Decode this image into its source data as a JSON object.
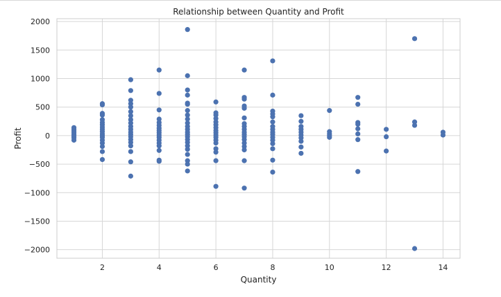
{
  "chart_data": {
    "type": "scatter",
    "title": "Relationship between Quantity and Profit",
    "xlabel": "Quantity",
    "ylabel": "Profit",
    "xlim": [
      0.4,
      14.6
    ],
    "ylim": [
      -2150,
      2050
    ],
    "xticks": [
      2,
      4,
      6,
      8,
      10,
      12,
      14
    ],
    "yticks": [
      -2000,
      -1500,
      -1000,
      -500,
      0,
      500,
      1000,
      1500,
      2000
    ],
    "xtick_labels": [
      "2",
      "4",
      "6",
      "8",
      "10",
      "12",
      "14"
    ],
    "ytick_labels": [
      "−2000",
      "−1500",
      "−1000",
      "−500",
      "0",
      "500",
      "1000",
      "1500",
      "2000"
    ],
    "grid": true,
    "marker_color": "#4c72b0",
    "points": [
      {
        "x": 1,
        "y": 140
      },
      {
        "x": 1,
        "y": 110
      },
      {
        "x": 1,
        "y": 80
      },
      {
        "x": 1,
        "y": 50
      },
      {
        "x": 1,
        "y": 20
      },
      {
        "x": 1,
        "y": -10
      },
      {
        "x": 1,
        "y": -40
      },
      {
        "x": 1,
        "y": -80
      },
      {
        "x": 2,
        "y": 560
      },
      {
        "x": 2,
        "y": 540
      },
      {
        "x": 2,
        "y": 390
      },
      {
        "x": 2,
        "y": 360
      },
      {
        "x": 2,
        "y": 280
      },
      {
        "x": 2,
        "y": 230
      },
      {
        "x": 2,
        "y": 190
      },
      {
        "x": 2,
        "y": 150
      },
      {
        "x": 2,
        "y": 110
      },
      {
        "x": 2,
        "y": 70
      },
      {
        "x": 2,
        "y": 30
      },
      {
        "x": 2,
        "y": 0
      },
      {
        "x": 2,
        "y": -30
      },
      {
        "x": 2,
        "y": -80
      },
      {
        "x": 2,
        "y": -130
      },
      {
        "x": 2,
        "y": -190
      },
      {
        "x": 2,
        "y": -280
      },
      {
        "x": 2,
        "y": -420
      },
      {
        "x": 3,
        "y": 980
      },
      {
        "x": 3,
        "y": 790
      },
      {
        "x": 3,
        "y": 620
      },
      {
        "x": 3,
        "y": 560
      },
      {
        "x": 3,
        "y": 500
      },
      {
        "x": 3,
        "y": 420
      },
      {
        "x": 3,
        "y": 350
      },
      {
        "x": 3,
        "y": 280
      },
      {
        "x": 3,
        "y": 220
      },
      {
        "x": 3,
        "y": 160
      },
      {
        "x": 3,
        "y": 110
      },
      {
        "x": 3,
        "y": 60
      },
      {
        "x": 3,
        "y": 20
      },
      {
        "x": 3,
        "y": -20
      },
      {
        "x": 3,
        "y": -70
      },
      {
        "x": 3,
        "y": -120
      },
      {
        "x": 3,
        "y": -180
      },
      {
        "x": 3,
        "y": -280
      },
      {
        "x": 3,
        "y": -460
      },
      {
        "x": 3,
        "y": -710
      },
      {
        "x": 4,
        "y": 1150
      },
      {
        "x": 4,
        "y": 740
      },
      {
        "x": 4,
        "y": 450
      },
      {
        "x": 4,
        "y": 290
      },
      {
        "x": 4,
        "y": 230
      },
      {
        "x": 4,
        "y": 180
      },
      {
        "x": 4,
        "y": 130
      },
      {
        "x": 4,
        "y": 90
      },
      {
        "x": 4,
        "y": 50
      },
      {
        "x": 4,
        "y": 10
      },
      {
        "x": 4,
        "y": -30
      },
      {
        "x": 4,
        "y": -80
      },
      {
        "x": 4,
        "y": -130
      },
      {
        "x": 4,
        "y": -180
      },
      {
        "x": 4,
        "y": -260
      },
      {
        "x": 4,
        "y": -430
      },
      {
        "x": 4,
        "y": -450
      },
      {
        "x": 5,
        "y": 1860
      },
      {
        "x": 5,
        "y": 1050
      },
      {
        "x": 5,
        "y": 800
      },
      {
        "x": 5,
        "y": 710
      },
      {
        "x": 5,
        "y": 570
      },
      {
        "x": 5,
        "y": 550
      },
      {
        "x": 5,
        "y": 440
      },
      {
        "x": 5,
        "y": 360
      },
      {
        "x": 5,
        "y": 290
      },
      {
        "x": 5,
        "y": 220
      },
      {
        "x": 5,
        "y": 160
      },
      {
        "x": 5,
        "y": 110
      },
      {
        "x": 5,
        "y": 60
      },
      {
        "x": 5,
        "y": 20
      },
      {
        "x": 5,
        "y": -20
      },
      {
        "x": 5,
        "y": -70
      },
      {
        "x": 5,
        "y": -120
      },
      {
        "x": 5,
        "y": -180
      },
      {
        "x": 5,
        "y": -240
      },
      {
        "x": 5,
        "y": -330
      },
      {
        "x": 5,
        "y": -440
      },
      {
        "x": 5,
        "y": -500
      },
      {
        "x": 5,
        "y": -620
      },
      {
        "x": 6,
        "y": 590
      },
      {
        "x": 6,
        "y": 400
      },
      {
        "x": 6,
        "y": 360
      },
      {
        "x": 6,
        "y": 300
      },
      {
        "x": 6,
        "y": 240
      },
      {
        "x": 6,
        "y": 190
      },
      {
        "x": 6,
        "y": 140
      },
      {
        "x": 6,
        "y": 90
      },
      {
        "x": 6,
        "y": 50
      },
      {
        "x": 6,
        "y": 10
      },
      {
        "x": 6,
        "y": -30
      },
      {
        "x": 6,
        "y": -80
      },
      {
        "x": 6,
        "y": -130
      },
      {
        "x": 6,
        "y": -230
      },
      {
        "x": 6,
        "y": -290
      },
      {
        "x": 6,
        "y": -440
      },
      {
        "x": 6,
        "y": -890
      },
      {
        "x": 7,
        "y": 1150
      },
      {
        "x": 7,
        "y": 670
      },
      {
        "x": 7,
        "y": 640
      },
      {
        "x": 7,
        "y": 520
      },
      {
        "x": 7,
        "y": 480
      },
      {
        "x": 7,
        "y": 310
      },
      {
        "x": 7,
        "y": 210
      },
      {
        "x": 7,
        "y": 160
      },
      {
        "x": 7,
        "y": 110
      },
      {
        "x": 7,
        "y": 60
      },
      {
        "x": 7,
        "y": 20
      },
      {
        "x": 7,
        "y": -20
      },
      {
        "x": 7,
        "y": -70
      },
      {
        "x": 7,
        "y": -130
      },
      {
        "x": 7,
        "y": -190
      },
      {
        "x": 7,
        "y": -250
      },
      {
        "x": 7,
        "y": -440
      },
      {
        "x": 7,
        "y": -920
      },
      {
        "x": 8,
        "y": 1310
      },
      {
        "x": 8,
        "y": 710
      },
      {
        "x": 8,
        "y": 430
      },
      {
        "x": 8,
        "y": 380
      },
      {
        "x": 8,
        "y": 330
      },
      {
        "x": 8,
        "y": 240
      },
      {
        "x": 8,
        "y": 160
      },
      {
        "x": 8,
        "y": 110
      },
      {
        "x": 8,
        "y": 60
      },
      {
        "x": 8,
        "y": 20
      },
      {
        "x": 8,
        "y": -30
      },
      {
        "x": 8,
        "y": -80
      },
      {
        "x": 8,
        "y": -140
      },
      {
        "x": 8,
        "y": -230
      },
      {
        "x": 8,
        "y": -430
      },
      {
        "x": 8,
        "y": -640
      },
      {
        "x": 9,
        "y": 350
      },
      {
        "x": 9,
        "y": 250
      },
      {
        "x": 9,
        "y": 160
      },
      {
        "x": 9,
        "y": 110
      },
      {
        "x": 9,
        "y": 60
      },
      {
        "x": 9,
        "y": 10
      },
      {
        "x": 9,
        "y": -40
      },
      {
        "x": 9,
        "y": -100
      },
      {
        "x": 9,
        "y": -200
      },
      {
        "x": 9,
        "y": -310
      },
      {
        "x": 10,
        "y": 440
      },
      {
        "x": 10,
        "y": 70
      },
      {
        "x": 10,
        "y": 30
      },
      {
        "x": 10,
        "y": 0
      },
      {
        "x": 10,
        "y": -30
      },
      {
        "x": 11,
        "y": 670
      },
      {
        "x": 11,
        "y": 550
      },
      {
        "x": 11,
        "y": 230
      },
      {
        "x": 11,
        "y": 200
      },
      {
        "x": 11,
        "y": 120
      },
      {
        "x": 11,
        "y": 30
      },
      {
        "x": 11,
        "y": -70
      },
      {
        "x": 11,
        "y": -630
      },
      {
        "x": 12,
        "y": 110
      },
      {
        "x": 12,
        "y": -20
      },
      {
        "x": 12,
        "y": -270
      },
      {
        "x": 13,
        "y": 1700
      },
      {
        "x": 13,
        "y": 240
      },
      {
        "x": 13,
        "y": 180
      },
      {
        "x": 13,
        "y": -1980
      },
      {
        "x": 14,
        "y": 60
      },
      {
        "x": 14,
        "y": 10
      }
    ]
  }
}
